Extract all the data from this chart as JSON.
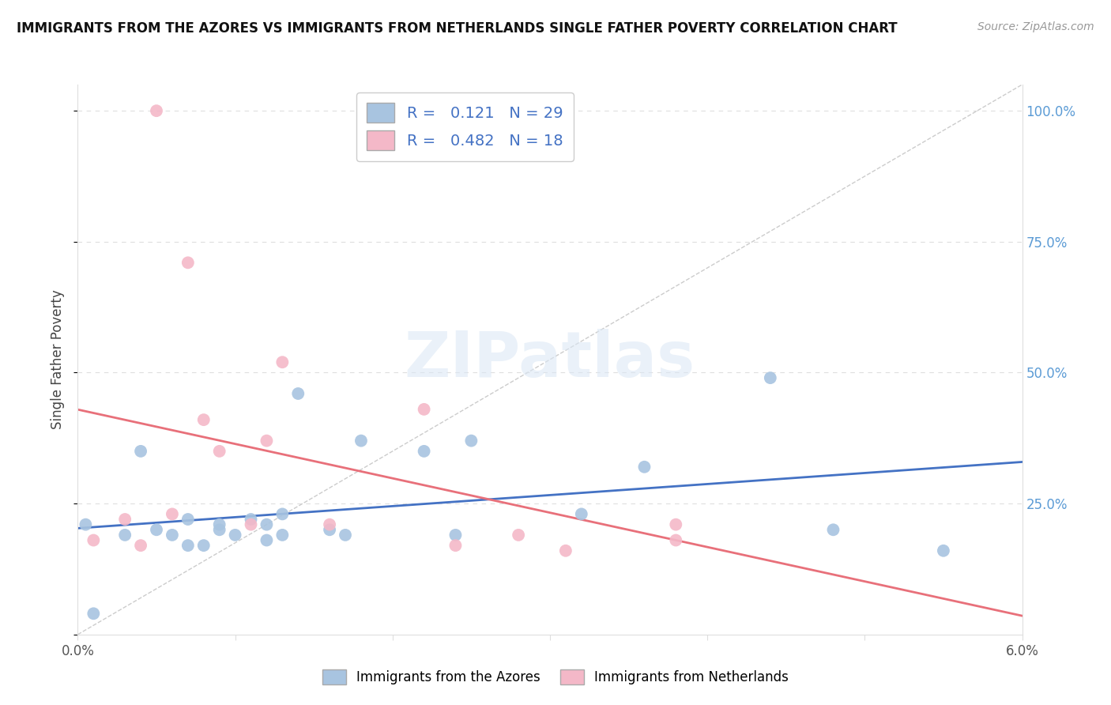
{
  "title": "IMMIGRANTS FROM THE AZORES VS IMMIGRANTS FROM NETHERLANDS SINGLE FATHER POVERTY CORRELATION CHART",
  "source": "Source: ZipAtlas.com",
  "ylabel": "Single Father Poverty",
  "xlim": [
    0.0,
    0.06
  ],
  "ylim": [
    0.0,
    1.05
  ],
  "R_azores": 0.121,
  "N_azores": 29,
  "R_netherlands": 0.482,
  "N_netherlands": 18,
  "legend_label_azores": "Immigrants from the Azores",
  "legend_label_netherlands": "Immigrants from Netherlands",
  "color_azores": "#a8c4e0",
  "color_netherlands": "#f4b8c8",
  "color_line_azores": "#4472c4",
  "color_line_netherlands": "#e8707a",
  "color_diagonal": "#cccccc",
  "color_right_axis": "#5b9bd5",
  "color_legend_text": "#4472c4",
  "watermark": "ZIPatlas",
  "azores_x": [
    0.0005,
    0.001,
    0.003,
    0.004,
    0.005,
    0.006,
    0.007,
    0.007,
    0.008,
    0.009,
    0.009,
    0.01,
    0.011,
    0.012,
    0.012,
    0.013,
    0.013,
    0.014,
    0.016,
    0.017,
    0.018,
    0.022,
    0.024,
    0.025,
    0.032,
    0.036,
    0.044,
    0.048,
    0.055
  ],
  "azores_y": [
    0.21,
    0.04,
    0.19,
    0.35,
    0.2,
    0.19,
    0.17,
    0.22,
    0.17,
    0.2,
    0.21,
    0.19,
    0.22,
    0.18,
    0.21,
    0.19,
    0.23,
    0.46,
    0.2,
    0.19,
    0.37,
    0.35,
    0.19,
    0.37,
    0.23,
    0.32,
    0.49,
    0.2,
    0.16
  ],
  "netherlands_x": [
    0.001,
    0.003,
    0.004,
    0.005,
    0.006,
    0.007,
    0.008,
    0.009,
    0.011,
    0.012,
    0.013,
    0.016,
    0.022,
    0.024,
    0.028,
    0.031,
    0.038,
    0.038
  ],
  "netherlands_y": [
    0.18,
    0.22,
    0.17,
    1.0,
    0.23,
    0.71,
    0.41,
    0.35,
    0.21,
    0.37,
    0.52,
    0.21,
    0.43,
    0.17,
    0.19,
    0.16,
    0.21,
    0.18
  ],
  "background_color": "#ffffff",
  "grid_color": "#dedede"
}
